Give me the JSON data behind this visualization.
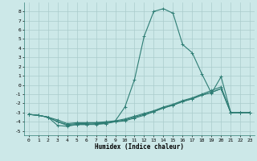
{
  "xlabel": "Humidex (Indice chaleur)",
  "background_color": "#cce8e8",
  "grid_color": "#aacccc",
  "line_color": "#2e7d74",
  "xlim": [
    -0.5,
    23.5
  ],
  "ylim": [
    -5.5,
    9.0
  ],
  "x_ticks": [
    0,
    1,
    2,
    3,
    4,
    5,
    6,
    7,
    8,
    9,
    10,
    11,
    12,
    13,
    14,
    15,
    16,
    17,
    18,
    19,
    20,
    21,
    22,
    23
  ],
  "y_ticks": [
    -5,
    -4,
    -3,
    -2,
    -1,
    0,
    1,
    2,
    3,
    4,
    5,
    6,
    7,
    8
  ],
  "line1_x": [
    0,
    1,
    2,
    3,
    4,
    5,
    6,
    7,
    8,
    9,
    10,
    11,
    12,
    13,
    14,
    15,
    16,
    17,
    18,
    19,
    20,
    21,
    22,
    23
  ],
  "line1_y": [
    -3.2,
    -3.3,
    -3.5,
    -4.4,
    -4.5,
    -4.3,
    -4.3,
    -4.3,
    -4.2,
    -3.9,
    -2.4,
    0.6,
    5.3,
    8.0,
    8.3,
    7.8,
    4.4,
    3.5,
    1.2,
    -0.9,
    0.9,
    -3.0,
    -3.0,
    -3.0
  ],
  "line2_x": [
    0,
    1,
    2,
    3,
    4,
    5,
    6,
    7,
    8,
    9,
    10,
    11,
    12,
    13,
    14,
    15,
    16,
    17,
    18,
    19,
    20,
    21,
    22,
    23
  ],
  "line2_y": [
    -3.2,
    -3.3,
    -3.5,
    -3.8,
    -4.2,
    -4.1,
    -4.1,
    -4.1,
    -4.0,
    -3.9,
    -3.7,
    -3.4,
    -3.1,
    -2.8,
    -2.4,
    -2.1,
    -1.7,
    -1.4,
    -1.0,
    -0.6,
    -0.2,
    -3.0,
    -3.0,
    -3.0
  ],
  "line3_x": [
    0,
    1,
    2,
    3,
    4,
    5,
    6,
    7,
    8,
    9,
    10,
    11,
    12,
    13,
    14,
    15,
    16,
    17,
    18,
    19,
    20,
    21,
    22,
    23
  ],
  "line3_y": [
    -3.2,
    -3.3,
    -3.5,
    -4.0,
    -4.3,
    -4.2,
    -4.2,
    -4.1,
    -4.1,
    -4.0,
    -3.8,
    -3.5,
    -3.2,
    -2.9,
    -2.5,
    -2.2,
    -1.8,
    -1.5,
    -1.1,
    -0.8,
    -0.4,
    -3.0,
    -3.0,
    -3.0
  ],
  "line4_x": [
    0,
    1,
    2,
    3,
    4,
    5,
    6,
    7,
    8,
    9,
    10,
    11,
    12,
    13,
    14,
    15,
    16,
    17,
    18,
    19,
    20,
    21,
    22,
    23
  ],
  "line4_y": [
    -3.2,
    -3.3,
    -3.5,
    -4.0,
    -4.4,
    -4.3,
    -4.3,
    -4.2,
    -4.2,
    -4.0,
    -3.9,
    -3.6,
    -3.3,
    -2.9,
    -2.5,
    -2.2,
    -1.8,
    -1.5,
    -1.1,
    -0.8,
    -0.4,
    -3.0,
    -3.0,
    -3.0
  ]
}
